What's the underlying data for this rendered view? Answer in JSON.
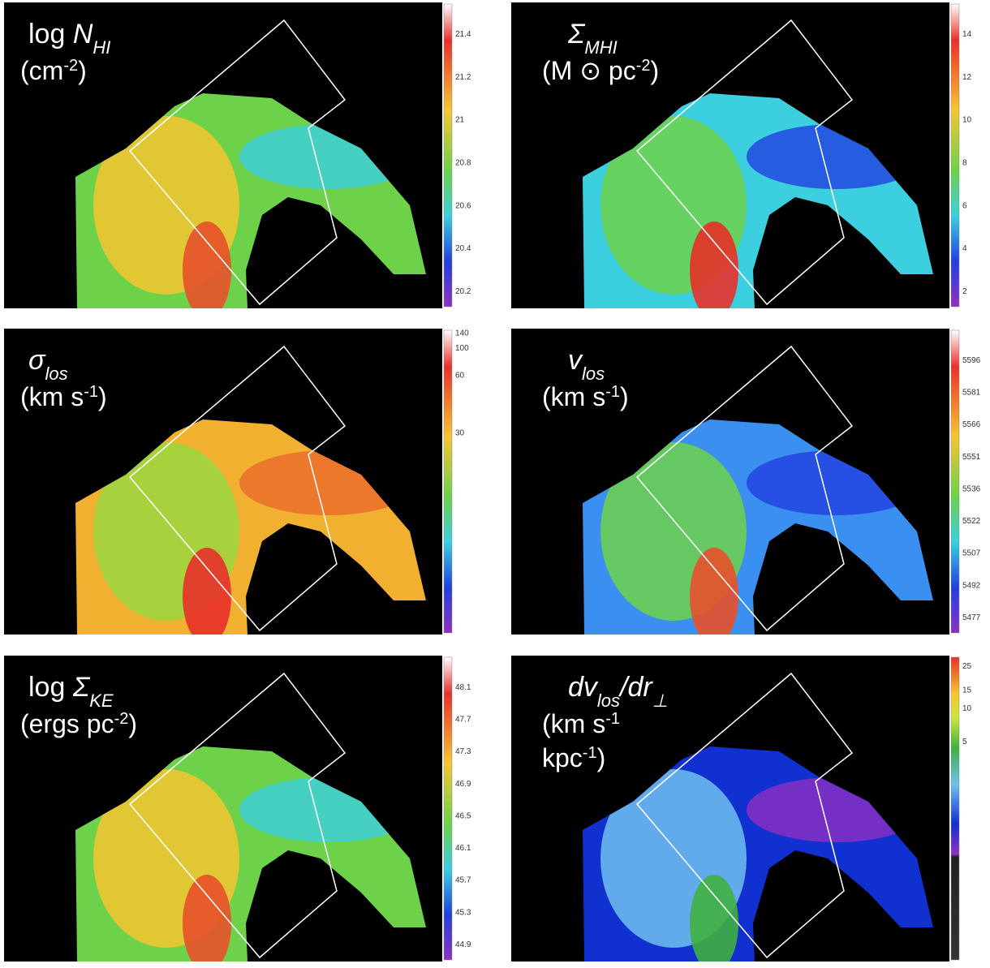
{
  "panels": [
    {
      "title": [
        "log ",
        "N",
        "HI"
      ],
      "unit": [
        [
          "(cm",
          "-2",
          ")"
        ]
      ],
      "colorbar": [
        "21.4",
        "21.2",
        "21",
        "20.8",
        "20.6",
        "20.4",
        "20.2"
      ]
    },
    {
      "title": [
        "Σ",
        "MHI"
      ],
      "unit": [
        [
          "(M ⊙ pc",
          "-2",
          ")"
        ]
      ],
      "colorbar": [
        "14",
        "12",
        "10",
        "8",
        "6",
        "4",
        "2"
      ]
    },
    {
      "title": [
        "σ",
        "los"
      ],
      "unit": [
        [
          "(km s",
          "-1",
          ")"
        ]
      ],
      "colorbar": [
        "140",
        "100",
        "60",
        "30"
      ]
    },
    {
      "title": [
        "v",
        "los"
      ],
      "unit": [
        [
          "(km s",
          "-1",
          ")"
        ]
      ],
      "colorbar": [
        "5596",
        "5581",
        "5566",
        "5551",
        "5536",
        "5522",
        "5507",
        "5492",
        "5477"
      ]
    },
    {
      "title": [
        "log ",
        "Σ",
        "KE"
      ],
      "unit": [
        [
          "(ergs pc",
          "-2",
          ")"
        ]
      ],
      "colorbar": [
        "48.1",
        "47.7",
        "47.3",
        "46.9",
        "46.5",
        "46.1",
        "45.7",
        "45.3",
        "44.9"
      ]
    },
    {
      "title": [
        "dv",
        "los",
        "/dr",
        "⊥"
      ],
      "unit": [
        [
          "(km s",
          "-1",
          ""
        ],
        [
          "kpc",
          "-1",
          ")"
        ]
      ],
      "colorbar": [
        "25",
        "15",
        "10",
        "5"
      ]
    }
  ]
}
